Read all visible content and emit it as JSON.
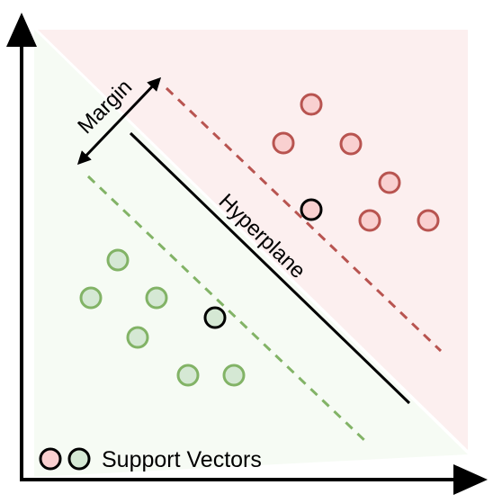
{
  "labels": {
    "margin": "Margin",
    "hyperplane": "Hyperplane",
    "legend": "Support Vectors"
  },
  "colors": {
    "positive_fill": "#f9d0d0",
    "positive_stroke": "#b85450",
    "negative_fill": "#d5e8d4",
    "negative_stroke": "#82b366",
    "positive_region": "#fcefef",
    "negative_region": "#f6fbf4",
    "axis": "#000000",
    "support_vector_stroke": "#000000"
  }
}
